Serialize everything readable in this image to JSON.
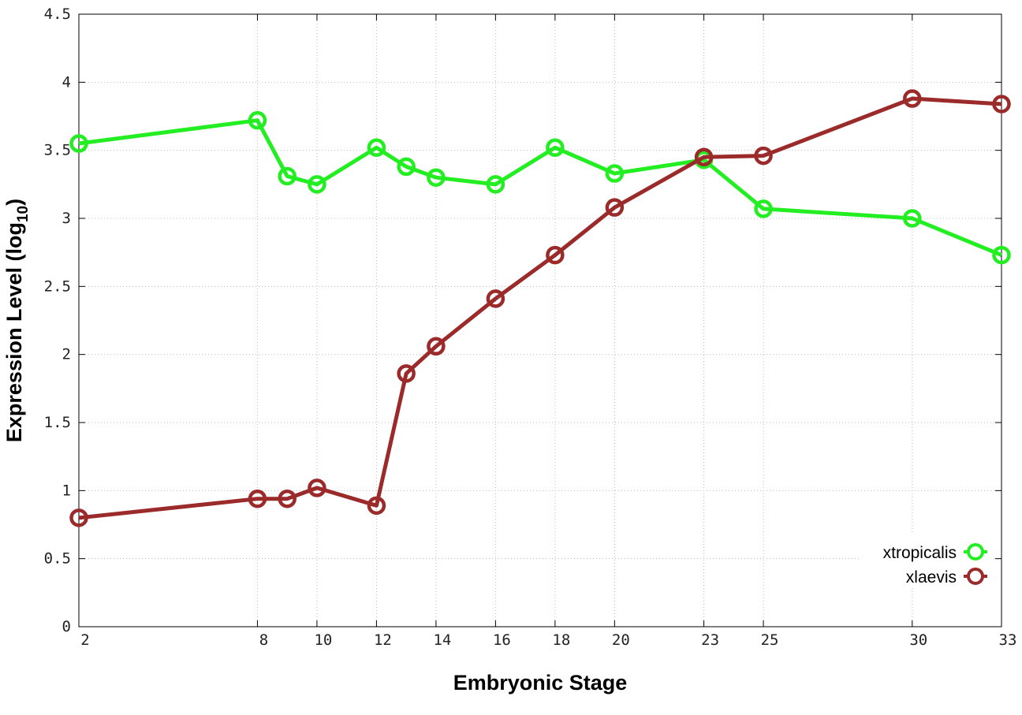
{
  "chart_data": {
    "type": "line",
    "xlabel": "Embryonic Stage",
    "ylabel_main": "Expression Level (log",
    "ylabel_sub": "10",
    "ylabel_close": ")",
    "x": [
      2,
      8,
      9,
      10,
      12,
      13,
      14,
      16,
      18,
      20,
      23,
      25,
      30,
      33
    ],
    "xticks": [
      "2",
      "8",
      "10",
      "12",
      "14",
      "16",
      "18",
      "20",
      "23",
      "25",
      "30",
      "33"
    ],
    "xlim": [
      2,
      33
    ],
    "yticks": [
      "0",
      "0.5",
      "1",
      "1.5",
      "2",
      "2.5",
      "3",
      "3.5",
      "4",
      "4.5"
    ],
    "ylim": [
      0,
      4.5
    ],
    "grid": true,
    "legend_position": "bottom-right",
    "series": [
      {
        "name": "xtropicalis",
        "color": "#22ee22",
        "values": [
          3.55,
          3.72,
          3.31,
          3.25,
          3.52,
          3.38,
          3.3,
          3.25,
          3.52,
          3.33,
          3.43,
          3.07,
          3.0,
          2.73
        ]
      },
      {
        "name": "xlaevis",
        "color": "#9b2a2a",
        "values": [
          0.8,
          0.94,
          0.94,
          1.02,
          0.89,
          1.86,
          2.06,
          2.41,
          2.73,
          3.08,
          3.45,
          3.46,
          3.88,
          3.84
        ]
      }
    ]
  }
}
